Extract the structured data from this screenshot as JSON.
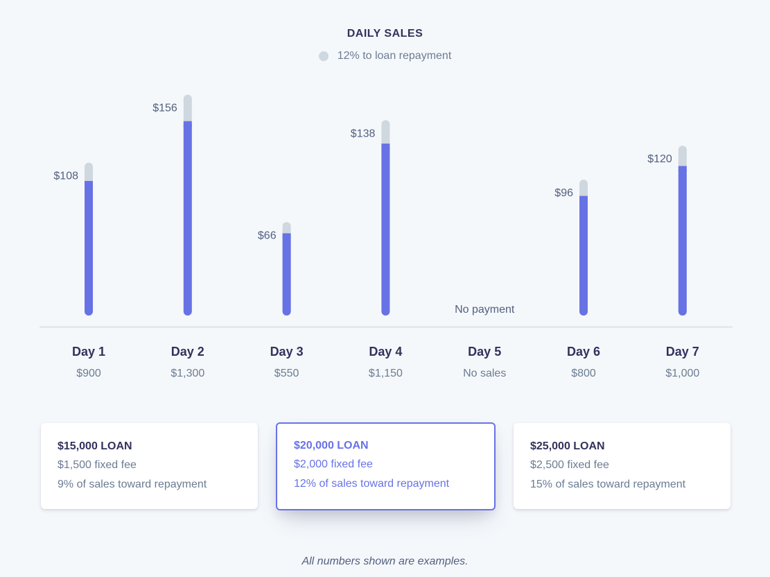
{
  "chart_data": {
    "type": "bar",
    "title": "DAILY SALES",
    "legend": [
      {
        "label": "12% to loan repayment",
        "color": "#cfd7df"
      }
    ],
    "categories": [
      "Day 1",
      "Day 2",
      "Day 3",
      "Day 4",
      "Day 5",
      "Day 6",
      "Day 7"
    ],
    "sales_labels": [
      "$900",
      "$1,300",
      "$550",
      "$1,150",
      "No sales",
      "$800",
      "$1,000"
    ],
    "sales": [
      900,
      1300,
      550,
      1150,
      0,
      800,
      1000
    ],
    "repayment": [
      108,
      156,
      66,
      138,
      0,
      96,
      120
    ],
    "repayment_labels": [
      "$108",
      "$156",
      "$66",
      "$138",
      "No payment",
      "$96",
      "$120"
    ],
    "colors": {
      "sales": "#6772e5",
      "repayment": "#cfd7df",
      "axis": "#d7dbe0"
    }
  },
  "cards": [
    {
      "loan": "$15,000 LOAN",
      "fee": "$1,500 fixed fee",
      "pct": "9% of sales toward repayment",
      "selected": false
    },
    {
      "loan": "$20,000 LOAN",
      "fee": "$2,000 fixed fee",
      "pct": "12% of sales toward repayment",
      "selected": true
    },
    {
      "loan": "$25,000 LOAN",
      "fee": "$2,500 fixed fee",
      "pct": "15% of sales toward repayment",
      "selected": false
    }
  ],
  "footnote": "All numbers shown are examples."
}
